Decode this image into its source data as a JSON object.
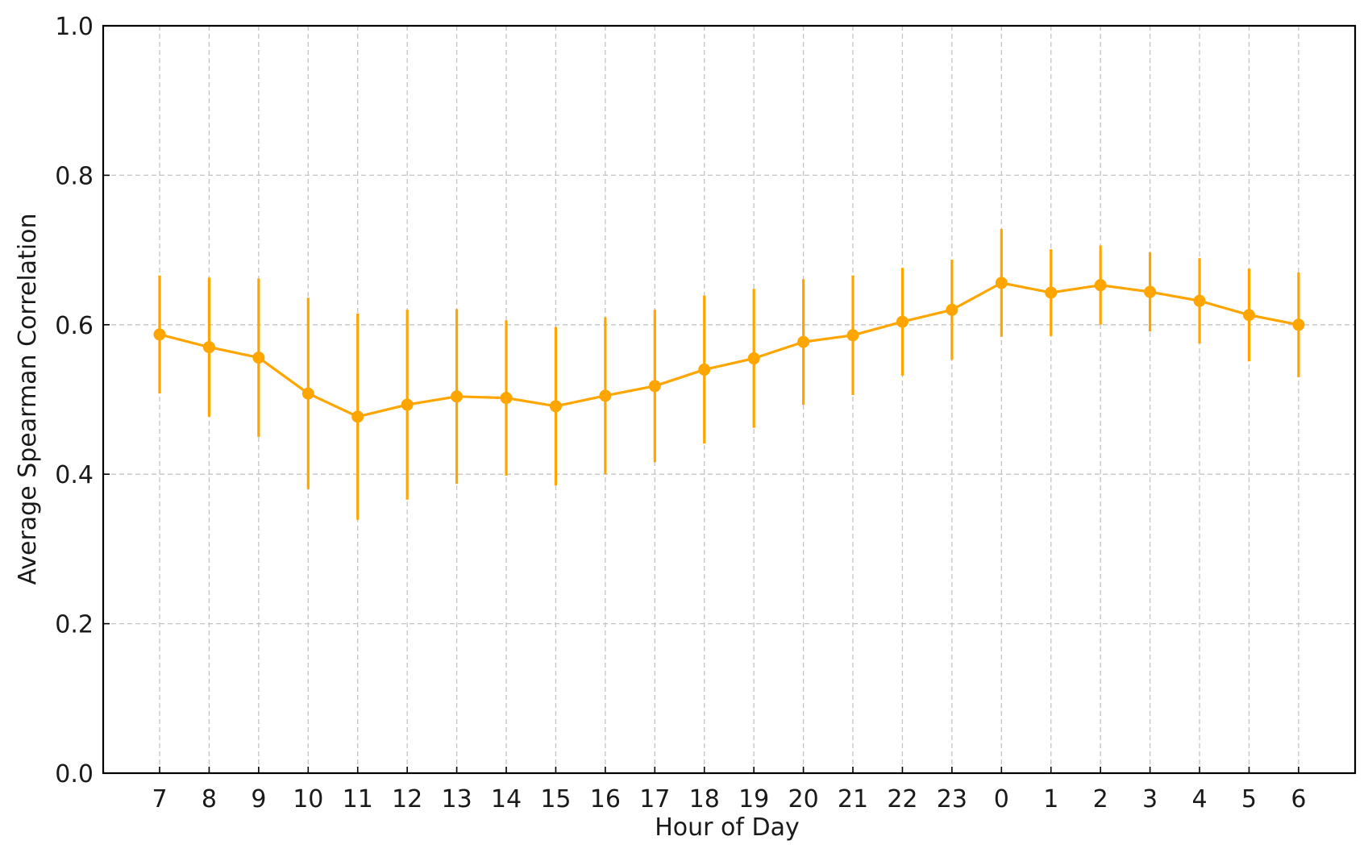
{
  "colors": {
    "series": "#FFA500",
    "grid": "#c4c4c4",
    "axis": "#000000"
  },
  "chart_data": {
    "type": "line",
    "title": "",
    "xlabel": "Hour of Day",
    "ylabel": "Average Spearman Correlation",
    "ylim": [
      0.0,
      1.0
    ],
    "yticks": [
      0.0,
      0.2,
      0.4,
      0.6,
      0.8,
      1.0
    ],
    "ytick_labels": [
      "0.0",
      "0.2",
      "0.4",
      "0.6",
      "0.8",
      "1.0"
    ],
    "grid": true,
    "legend": "none",
    "categories": [
      "7",
      "8",
      "9",
      "10",
      "11",
      "12",
      "13",
      "14",
      "15",
      "16",
      "17",
      "18",
      "19",
      "20",
      "21",
      "22",
      "23",
      "0",
      "1",
      "2",
      "3",
      "4",
      "5",
      "6"
    ],
    "series": [
      {
        "values": [
          0.587,
          0.57,
          0.556,
          0.508,
          0.477,
          0.493,
          0.504,
          0.502,
          0.491,
          0.505,
          0.518,
          0.54,
          0.555,
          0.577,
          0.586,
          0.604,
          0.62,
          0.656,
          0.643,
          0.653,
          0.644,
          0.632,
          0.613,
          0.6
        ],
        "error": [
          0.079,
          0.093,
          0.106,
          0.128,
          0.138,
          0.127,
          0.117,
          0.104,
          0.106,
          0.105,
          0.102,
          0.099,
          0.093,
          0.084,
          0.08,
          0.072,
          0.067,
          0.072,
          0.058,
          0.053,
          0.053,
          0.057,
          0.062,
          0.07
        ]
      }
    ]
  }
}
